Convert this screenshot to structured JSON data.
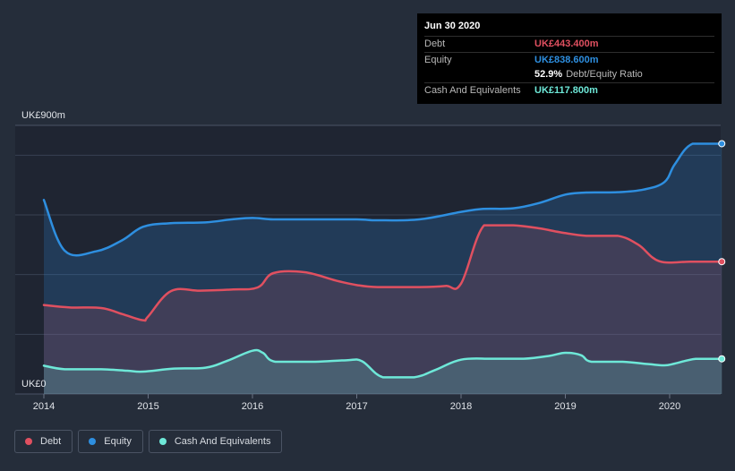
{
  "tooltip": {
    "date": "Jun 30 2020",
    "debt_label": "Debt",
    "debt_value": "UK£443.400m",
    "equity_label": "Equity",
    "equity_value": "UK£838.600m",
    "ratio_value": "52.9%",
    "ratio_label": "Debt/Equity Ratio",
    "cash_label": "Cash And Equivalents",
    "cash_value": "UK£117.800m"
  },
  "legend": {
    "debt": "Debt",
    "equity": "Equity",
    "cash": "Cash And Equivalents"
  },
  "colors": {
    "debt": "#e05060",
    "equity": "#2e8fe0",
    "cash": "#6ee8d8"
  },
  "chart_data": {
    "type": "area",
    "ylim": [
      0,
      900
    ],
    "y_tick_labels": [
      "UK£0",
      "UK£900m"
    ],
    "x_ticks": [
      2014,
      2015,
      2016,
      2017,
      2018,
      2019,
      2020
    ],
    "x_tick_labels": [
      "2014",
      "2015",
      "2016",
      "2017",
      "2018",
      "2019",
      "2020"
    ],
    "xlim": [
      2014,
      2020.5
    ],
    "grid": "horizontal",
    "series": [
      {
        "name": "Equity",
        "key": "equity",
        "points": [
          [
            2014.0,
            650
          ],
          [
            2014.2,
            480
          ],
          [
            2014.5,
            478
          ],
          [
            2014.75,
            515
          ],
          [
            2014.95,
            560
          ],
          [
            2015.2,
            572
          ],
          [
            2015.55,
            575
          ],
          [
            2015.8,
            585
          ],
          [
            2016.0,
            590
          ],
          [
            2016.2,
            585
          ],
          [
            2016.5,
            585
          ],
          [
            2017.0,
            585
          ],
          [
            2017.2,
            582
          ],
          [
            2017.6,
            585
          ],
          [
            2018.0,
            610
          ],
          [
            2018.2,
            620
          ],
          [
            2018.5,
            622
          ],
          [
            2018.75,
            640
          ],
          [
            2019.0,
            668
          ],
          [
            2019.2,
            675
          ],
          [
            2019.5,
            676
          ],
          [
            2019.75,
            685
          ],
          [
            2019.95,
            710
          ],
          [
            2020.05,
            770
          ],
          [
            2020.22,
            838.6
          ],
          [
            2020.5,
            838.6
          ]
        ]
      },
      {
        "name": "Debt",
        "key": "debt",
        "points": [
          [
            2014.0,
            298
          ],
          [
            2014.25,
            290
          ],
          [
            2014.55,
            288
          ],
          [
            2014.75,
            268
          ],
          [
            2014.95,
            247
          ],
          [
            2015.0,
            260
          ],
          [
            2015.22,
            345
          ],
          [
            2015.5,
            346
          ],
          [
            2015.8,
            350
          ],
          [
            2016.05,
            357
          ],
          [
            2016.2,
            405
          ],
          [
            2016.5,
            408
          ],
          [
            2016.8,
            380
          ],
          [
            2017.0,
            365
          ],
          [
            2017.2,
            358
          ],
          [
            2017.6,
            358
          ],
          [
            2017.85,
            362
          ],
          [
            2018.0,
            370
          ],
          [
            2018.22,
            565
          ],
          [
            2018.5,
            565
          ],
          [
            2018.75,
            555
          ],
          [
            2018.95,
            542
          ],
          [
            2019.2,
            530
          ],
          [
            2019.5,
            530
          ],
          [
            2019.7,
            500
          ],
          [
            2019.9,
            445
          ],
          [
            2020.2,
            443.4
          ],
          [
            2020.5,
            443.4
          ]
        ]
      },
      {
        "name": "Cash And Equivalents",
        "key": "cash",
        "points": [
          [
            2014.0,
            95
          ],
          [
            2014.2,
            83
          ],
          [
            2014.55,
            83
          ],
          [
            2014.8,
            78
          ],
          [
            2014.95,
            75
          ],
          [
            2015.25,
            85
          ],
          [
            2015.55,
            88
          ],
          [
            2015.75,
            110
          ],
          [
            2016.0,
            145
          ],
          [
            2016.1,
            138
          ],
          [
            2016.22,
            108
          ],
          [
            2016.6,
            108
          ],
          [
            2016.9,
            113
          ],
          [
            2017.05,
            110
          ],
          [
            2017.25,
            56
          ],
          [
            2017.55,
            56
          ],
          [
            2017.75,
            80
          ],
          [
            2018.0,
            115
          ],
          [
            2018.3,
            118
          ],
          [
            2018.6,
            118
          ],
          [
            2018.85,
            128
          ],
          [
            2019.0,
            138
          ],
          [
            2019.15,
            130
          ],
          [
            2019.25,
            108
          ],
          [
            2019.55,
            108
          ],
          [
            2019.8,
            100
          ],
          [
            2019.95,
            96
          ],
          [
            2020.05,
            102
          ],
          [
            2020.25,
            117.8
          ],
          [
            2020.5,
            117.8
          ]
        ]
      }
    ]
  }
}
